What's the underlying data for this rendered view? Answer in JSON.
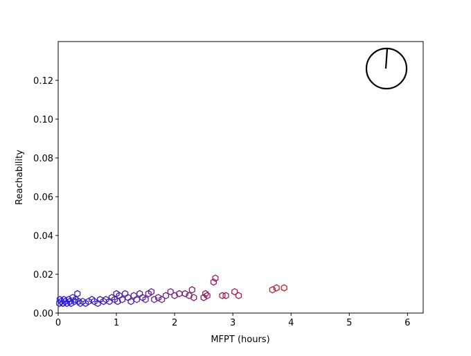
{
  "chart_data": {
    "type": "scatter",
    "xlabel": "MFPT (hours)",
    "ylabel": "Reachability",
    "x": [
      0.02,
      0.03,
      0.05,
      0.08,
      0.1,
      0.12,
      0.15,
      0.18,
      0.2,
      0.22,
      0.25,
      0.28,
      0.3,
      0.33,
      0.35,
      0.38,
      0.42,
      0.47,
      0.52,
      0.58,
      0.62,
      0.68,
      0.72,
      0.78,
      0.82,
      0.88,
      0.92,
      0.97,
      1.0,
      1.02,
      1.05,
      1.1,
      1.15,
      1.2,
      1.25,
      1.3,
      1.35,
      1.4,
      1.45,
      1.5,
      1.55,
      1.6,
      1.65,
      1.72,
      1.78,
      1.85,
      1.93,
      2.0,
      2.08,
      2.18,
      2.25,
      2.3,
      2.33,
      2.5,
      2.53,
      2.56,
      2.67,
      2.7,
      2.82,
      2.88,
      3.03,
      3.1,
      3.68,
      3.75,
      3.88
    ],
    "y": [
      0.005,
      0.007,
      0.006,
      0.005,
      0.007,
      0.006,
      0.005,
      0.007,
      0.006,
      0.005,
      0.008,
      0.006,
      0.007,
      0.01,
      0.006,
      0.005,
      0.006,
      0.005,
      0.006,
      0.007,
      0.006,
      0.005,
      0.007,
      0.006,
      0.007,
      0.006,
      0.008,
      0.007,
      0.01,
      0.006,
      0.009,
      0.007,
      0.01,
      0.008,
      0.006,
      0.009,
      0.007,
      0.01,
      0.008,
      0.007,
      0.01,
      0.011,
      0.007,
      0.008,
      0.007,
      0.009,
      0.011,
      0.009,
      0.01,
      0.01,
      0.009,
      0.012,
      0.008,
      0.008,
      0.01,
      0.009,
      0.016,
      0.018,
      0.009,
      0.009,
      0.011,
      0.009,
      0.012,
      0.013,
      0.013
    ],
    "cmap": [
      "#2a1fd4",
      "#b8232c"
    ],
    "xlim": [
      0,
      6.27
    ],
    "ylim": [
      0,
      0.14
    ],
    "xticks": [
      0,
      1,
      2,
      3,
      4,
      5,
      6
    ],
    "yticks": [
      {
        "value": 0,
        "label": "0.00"
      },
      {
        "value": 0.02,
        "label": "0.02"
      },
      {
        "value": 0.04,
        "label": "0.04"
      },
      {
        "value": 0.06,
        "label": "0.06"
      },
      {
        "value": 0.08,
        "label": "0.08"
      },
      {
        "value": 0.1,
        "label": "0.10"
      },
      {
        "value": 0.12,
        "label": "0.12"
      }
    ]
  }
}
